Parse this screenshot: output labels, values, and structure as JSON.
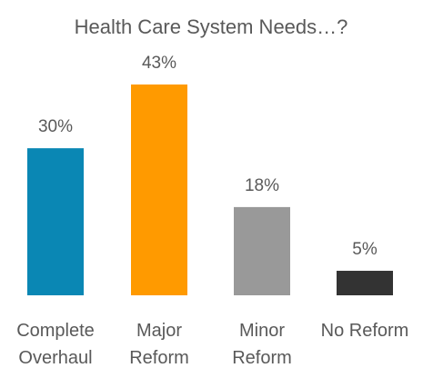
{
  "chart_data": {
    "type": "bar",
    "title": "Health Care System Needs…?",
    "categories": [
      [
        "Complete",
        "Overhaul"
      ],
      [
        "Major",
        "Reform"
      ],
      [
        "Minor",
        "Reform"
      ],
      [
        "No Reform"
      ]
    ],
    "values": [
      30,
      43,
      18,
      5
    ],
    "data_labels": [
      "30%",
      "43%",
      "18%",
      "5%"
    ],
    "colors": [
      "#0a87b4",
      "#ff9a00",
      "#999999",
      "#333333"
    ],
    "ylim": [
      0,
      43
    ],
    "grid": false,
    "legend": "none"
  }
}
